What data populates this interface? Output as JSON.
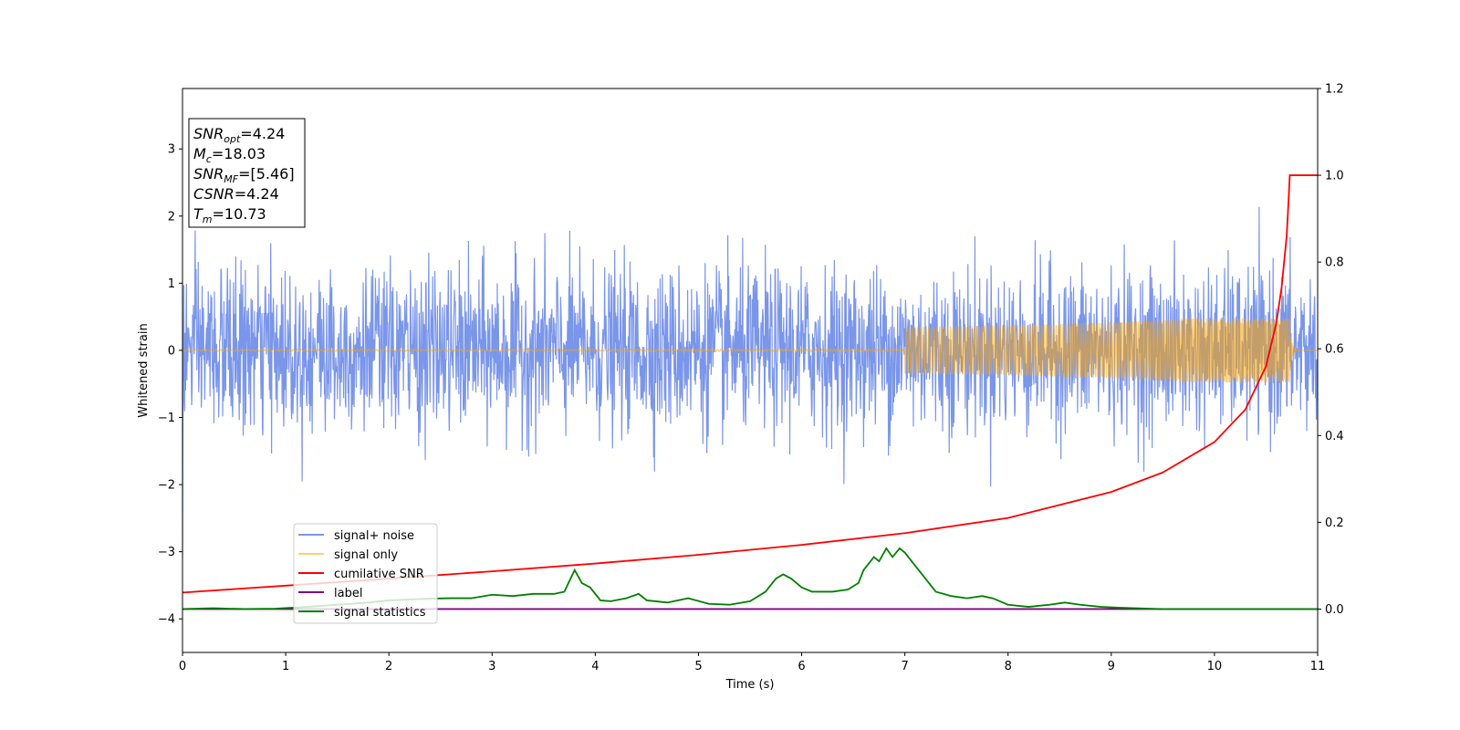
{
  "chart_data": {
    "type": "line",
    "xlabel": "Time (s)",
    "ylabel": "Whitened strain",
    "xlim": [
      0,
      11
    ],
    "ylim_left": [
      -4.5,
      3.9
    ],
    "ylim_right": [
      -0.1,
      1.2
    ],
    "x_ticks": [
      0,
      1,
      2,
      3,
      4,
      5,
      6,
      7,
      8,
      9,
      10,
      11
    ],
    "y_ticks_left": [
      -4,
      -3,
      -2,
      -1,
      0,
      1,
      2,
      3
    ],
    "y_ticks_right": [
      0.0,
      0.2,
      0.4,
      0.6,
      0.8,
      1.0,
      1.2
    ],
    "y_tick_labels_left": [
      "−4",
      "−3",
      "−2",
      "−1",
      "0",
      "1",
      "2",
      "3"
    ],
    "y_tick_labels_right": [
      "0.0",
      "0.2",
      "0.4",
      "0.6",
      "0.8",
      "1.0",
      "1.2"
    ],
    "grid": false,
    "legend_position": "lower-left",
    "series": [
      {
        "name": "signal+ noise",
        "axis": "left",
        "color": "#4169e1",
        "description_type": "noise",
        "amplitude_range": [
          -2.6,
          2.35
        ],
        "x_range": [
          0,
          11
        ]
      },
      {
        "name": "signal only",
        "axis": "left",
        "color": "#ffa500",
        "description_type": "chirp",
        "merger_time": 10.73,
        "peak_amplitude": 0.48
      },
      {
        "name": "cumilative SNR",
        "axis": "right",
        "color": "#ff0000",
        "x": [
          0,
          1,
          2,
          3,
          4,
          5,
          6,
          7,
          8,
          9,
          9.5,
          10,
          10.3,
          10.5,
          10.6,
          10.65,
          10.7,
          10.72,
          10.73,
          11
        ],
        "y": [
          0.038,
          0.054,
          0.07,
          0.087,
          0.105,
          0.125,
          0.148,
          0.175,
          0.21,
          0.27,
          0.315,
          0.385,
          0.46,
          0.56,
          0.66,
          0.74,
          0.86,
          0.95,
          1.0,
          1.0
        ]
      },
      {
        "name": "label",
        "axis": "right",
        "color": "#800080",
        "x": [
          0,
          11
        ],
        "y": [
          0.0,
          0.0
        ]
      },
      {
        "name": "signal statistics",
        "axis": "right",
        "color": "#008000",
        "x": [
          0,
          0.3,
          0.6,
          0.9,
          1.2,
          1.5,
          1.8,
          2.0,
          2.2,
          2.4,
          2.6,
          2.8,
          3.0,
          3.2,
          3.4,
          3.6,
          3.7,
          3.8,
          3.87,
          3.95,
          4.05,
          4.15,
          4.3,
          4.42,
          4.5,
          4.7,
          4.9,
          5.1,
          5.3,
          5.5,
          5.65,
          5.75,
          5.82,
          5.9,
          6.0,
          6.1,
          6.2,
          6.3,
          6.45,
          6.55,
          6.6,
          6.7,
          6.75,
          6.82,
          6.88,
          6.95,
          7.0,
          7.1,
          7.2,
          7.3,
          7.45,
          7.6,
          7.75,
          7.85,
          8.0,
          8.2,
          8.4,
          8.55,
          8.7,
          8.9,
          9.1,
          9.5,
          10.0,
          11.0
        ],
        "y": [
          0.0,
          0.002,
          0.0,
          0.001,
          0.005,
          0.01,
          0.015,
          0.02,
          0.022,
          0.024,
          0.025,
          0.025,
          0.033,
          0.03,
          0.035,
          0.035,
          0.04,
          0.09,
          0.06,
          0.05,
          0.02,
          0.018,
          0.025,
          0.035,
          0.02,
          0.015,
          0.025,
          0.012,
          0.01,
          0.018,
          0.04,
          0.07,
          0.08,
          0.07,
          0.05,
          0.04,
          0.04,
          0.04,
          0.045,
          0.06,
          0.09,
          0.12,
          0.11,
          0.14,
          0.12,
          0.14,
          0.13,
          0.1,
          0.07,
          0.04,
          0.03,
          0.025,
          0.03,
          0.025,
          0.01,
          0.005,
          0.01,
          0.015,
          0.01,
          0.005,
          0.003,
          0.0,
          0.0,
          0.0
        ]
      }
    ],
    "info_box": [
      {
        "main": "SNR",
        "sub": "opt",
        "value": "=4.24"
      },
      {
        "main": "M",
        "sub": "c",
        "value": "=18.03"
      },
      {
        "main": "SNR",
        "sub": "MF",
        "value": "=[5.46]"
      },
      {
        "main": "CSNR",
        "sub": "",
        "value": "=4.24"
      },
      {
        "main": "T",
        "sub": "m",
        "value": "=10.73"
      }
    ]
  }
}
